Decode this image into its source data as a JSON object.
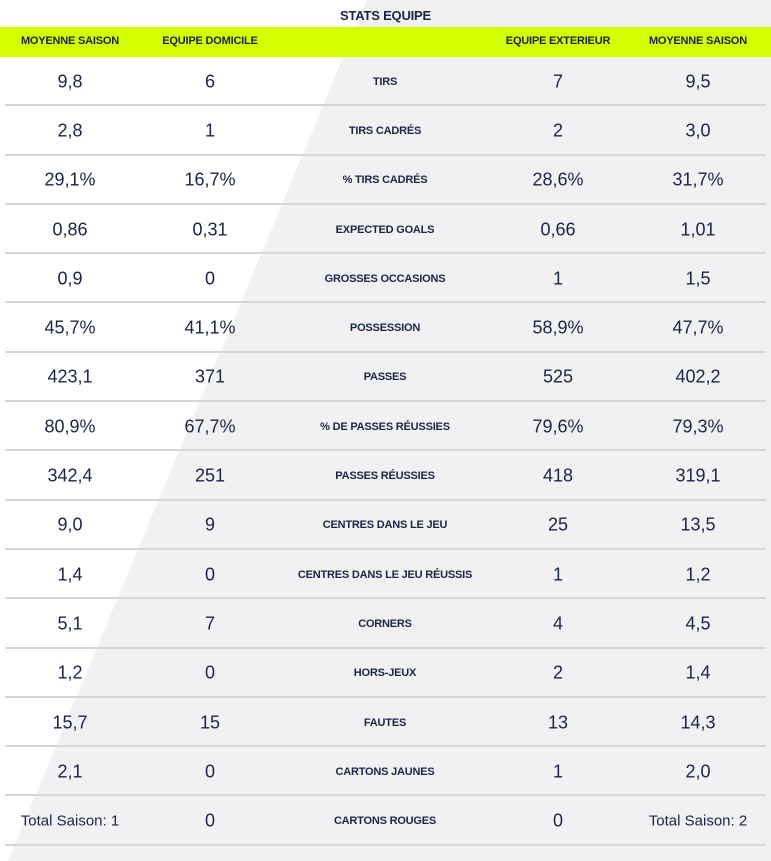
{
  "title": "STATS EQUIPE",
  "accent_color": "#d4ff00",
  "headers": [
    "MOYENNE SAISON",
    "EQUIPE DOMICILE",
    "EQUIPE EXTERIEUR",
    "MOYENNE SAISON"
  ],
  "rows": [
    {
      "home_avg": "9,8",
      "home": "6",
      "label": "TIRS",
      "away": "7",
      "away_avg": "9,5"
    },
    {
      "home_avg": "2,8",
      "home": "1",
      "label": "TIRS CADRÉS",
      "away": "2",
      "away_avg": "3,0"
    },
    {
      "home_avg": "29,1%",
      "home": "16,7%",
      "label": "% TIRS CADRÉS",
      "away": "28,6%",
      "away_avg": "31,7%"
    },
    {
      "home_avg": "0,86",
      "home": "0,31",
      "label": "EXPECTED GOALS",
      "away": "0,66",
      "away_avg": "1,01"
    },
    {
      "home_avg": "0,9",
      "home": "0",
      "label": "GROSSES OCCASIONS",
      "away": "1",
      "away_avg": "1,5"
    },
    {
      "home_avg": "45,7%",
      "home": "41,1%",
      "label": "POSSESSION",
      "away": "58,9%",
      "away_avg": "47,7%"
    },
    {
      "home_avg": "423,1",
      "home": "371",
      "label": "PASSES",
      "away": "525",
      "away_avg": "402,2"
    },
    {
      "home_avg": "80,9%",
      "home": "67,7%",
      "label": "% DE PASSES RÉUSSIES",
      "away": "79,6%",
      "away_avg": "79,3%"
    },
    {
      "home_avg": "342,4",
      "home": "251",
      "label": "PASSES RÉUSSIES",
      "away": "418",
      "away_avg": "319,1"
    },
    {
      "home_avg": "9,0",
      "home": "9",
      "label": "CENTRES DANS LE JEU",
      "away": "25",
      "away_avg": "13,5"
    },
    {
      "home_avg": "1,4",
      "home": "0",
      "label": "CENTRES DANS LE JEU RÉUSSIS",
      "away": "1",
      "away_avg": "1,2"
    },
    {
      "home_avg": "5,1",
      "home": "7",
      "label": "CORNERS",
      "away": "4",
      "away_avg": "4,5"
    },
    {
      "home_avg": "1,2",
      "home": "0",
      "label": "HORS-JEUX",
      "away": "2",
      "away_avg": "1,4"
    },
    {
      "home_avg": "15,7",
      "home": "15",
      "label": "FAUTES",
      "away": "13",
      "away_avg": "14,3"
    },
    {
      "home_avg": "2,1",
      "home": "0",
      "label": "CARTONS JAUNES",
      "away": "1",
      "away_avg": "2,0"
    },
    {
      "home_avg": "Total Saison: 1",
      "home": "0",
      "label": "CARTONS ROUGES",
      "away": "0",
      "away_avg": "Total Saison: 2"
    }
  ]
}
